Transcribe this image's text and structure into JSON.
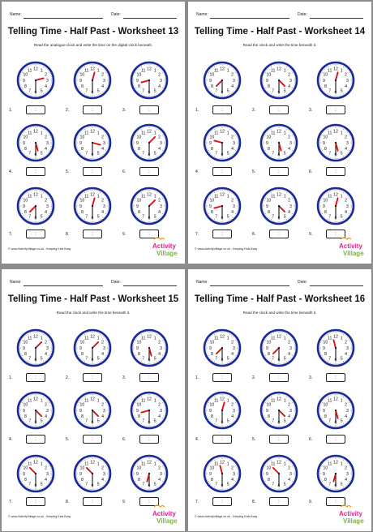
{
  "common": {
    "name_label": "Name:",
    "date_label": "Date:",
    "footer": "© www.ActivityVillage.co.uk - Keeping Kids Busy",
    "logo_word1": "Activity",
    "logo_word2": "Village",
    "question_numbers": [
      "1.",
      "2.",
      "3.",
      "4.",
      "5.",
      "6.",
      "7.",
      "8.",
      "9."
    ],
    "clock_numerals": [
      "12",
      "1",
      "2",
      "3",
      "4",
      "5",
      "6",
      "7",
      "8",
      "9",
      "10",
      "11"
    ],
    "box_text": ":"
  },
  "worksheets": [
    {
      "title": "Telling Time - Half Past - Worksheet 13",
      "instruction": "Read the analogue clock and write the time on the digital clock beneath.",
      "clocks": [
        {
          "hour": 2,
          "minute": 30
        },
        {
          "hour": 12,
          "minute": 30
        },
        {
          "hour": 8,
          "minute": 30
        },
        {
          "hour": 5,
          "minute": 30
        },
        {
          "hour": 3,
          "minute": 30
        },
        {
          "hour": 1,
          "minute": 30
        },
        {
          "hour": 7,
          "minute": 30
        },
        {
          "hour": 12,
          "minute": 30
        },
        {
          "hour": 1,
          "minute": 30
        }
      ]
    },
    {
      "title": "Telling Time - Half Past - Worksheet 14",
      "instruction": "Read the clock and write the time beneath it.",
      "clocks": [
        {
          "hour": 7,
          "minute": 30
        },
        {
          "hour": 4,
          "minute": 30
        },
        {
          "hour": 12,
          "minute": 30
        },
        {
          "hour": 9,
          "minute": 30
        },
        {
          "hour": 5,
          "minute": 30
        },
        {
          "hour": 5,
          "minute": 30
        },
        {
          "hour": 8,
          "minute": 30
        },
        {
          "hour": 4,
          "minute": 30
        },
        {
          "hour": 12,
          "minute": 30
        }
      ]
    },
    {
      "title": "Telling Time - Half Past - Worksheet 15",
      "instruction": "Read the clock and write the time beneath it.",
      "clocks": [
        {
          "hour": 1,
          "minute": 30
        },
        {
          "hour": 1,
          "minute": 30
        },
        {
          "hour": 5,
          "minute": 30
        },
        {
          "hour": 4,
          "minute": 30
        },
        {
          "hour": 4,
          "minute": 30
        },
        {
          "hour": 8,
          "minute": 30
        },
        {
          "hour": 10,
          "minute": 30
        },
        {
          "hour": 10,
          "minute": 30
        },
        {
          "hour": 6,
          "minute": 30
        }
      ]
    },
    {
      "title": "Telling Time - Half Past - Worksheet 16",
      "instruction": "Read the clock and write the time beneath it.",
      "clocks": [
        {
          "hour": 7,
          "minute": 30
        },
        {
          "hour": 7,
          "minute": 30
        },
        {
          "hour": 11,
          "minute": 30
        },
        {
          "hour": 12,
          "minute": 30
        },
        {
          "hour": 4,
          "minute": 30
        },
        {
          "hour": 5,
          "minute": 30
        },
        {
          "hour": 11,
          "minute": 30
        },
        {
          "hour": 10,
          "minute": 30
        },
        {
          "hour": 6,
          "minute": 30
        }
      ]
    }
  ]
}
